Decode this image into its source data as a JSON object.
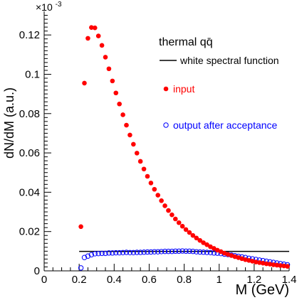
{
  "chart_data": {
    "type": "scatter",
    "title": "",
    "xlabel": "M (GeV)",
    "ylabel": "dN/dM (a.u.)",
    "y_multiplier_label": "×10",
    "y_multiplier_exp": "-3",
    "xlim": [
      0,
      1.4
    ],
    "ylim": [
      0,
      0.132
    ],
    "x_ticks": [
      0,
      0.2,
      0.4,
      0.6,
      0.8,
      1,
      1.2,
      1.4
    ],
    "x_tick_labels": [
      "0",
      "0.2",
      "0.4",
      "0.6",
      "0.8",
      "1",
      "1.2",
      "1.4"
    ],
    "y_ticks": [
      0,
      0.02,
      0.04,
      0.06,
      0.08,
      0.1,
      0.12
    ],
    "y_tick_labels": [
      "0",
      "0.02",
      "0.04",
      "0.06",
      "0.08",
      "0.1",
      "0.12"
    ],
    "grid": false,
    "legend_position": "top-right",
    "legend_header": "thermal qq̄",
    "series": [
      {
        "name": "white spectral function",
        "style": "line",
        "color": "#000000",
        "x": [
          0.2,
          1.4
        ],
        "y": [
          0.0099,
          0.0099
        ]
      },
      {
        "name": "input",
        "style": "filled-circle",
        "color": "#ff0000",
        "x": [
          0.21,
          0.23,
          0.25,
          0.27,
          0.29,
          0.31,
          0.33,
          0.35,
          0.37,
          0.39,
          0.41,
          0.43,
          0.45,
          0.47,
          0.49,
          0.51,
          0.53,
          0.55,
          0.57,
          0.59,
          0.61,
          0.63,
          0.65,
          0.67,
          0.69,
          0.71,
          0.73,
          0.75,
          0.77,
          0.79,
          0.81,
          0.83,
          0.85,
          0.87,
          0.89,
          0.91,
          0.93,
          0.95,
          0.97,
          0.99,
          1.01,
          1.03,
          1.05,
          1.07,
          1.09,
          1.11,
          1.13,
          1.15,
          1.17,
          1.19,
          1.21,
          1.23,
          1.25,
          1.27,
          1.29,
          1.31,
          1.33,
          1.35,
          1.37,
          1.39
        ],
        "y": [
          0.0225,
          0.0955,
          0.1183,
          0.1238,
          0.1236,
          0.1195,
          0.1147,
          0.1087,
          0.1028,
          0.0966,
          0.0905,
          0.0849,
          0.0794,
          0.0741,
          0.0691,
          0.0644,
          0.0599,
          0.0557,
          0.0518,
          0.0481,
          0.0447,
          0.0415,
          0.0385,
          0.0357,
          0.0331,
          0.0307,
          0.0285,
          0.0264,
          0.0245,
          0.0227,
          0.021,
          0.0195,
          0.018,
          0.0167,
          0.0155,
          0.0143,
          0.0133,
          0.0123,
          0.0114,
          0.0105,
          0.0098,
          0.009,
          0.0084,
          0.0078,
          0.0072,
          0.0067,
          0.0062,
          0.0057,
          0.0053,
          0.0049,
          0.0045,
          0.0042,
          0.0039,
          0.0036,
          0.0034,
          0.0031,
          0.0029,
          0.0027,
          0.0025,
          0.0023
        ]
      },
      {
        "name": "output after acceptance",
        "style": "open-circle",
        "color": "#0000ff",
        "x": [
          0.21,
          0.23,
          0.25,
          0.27,
          0.29,
          0.31,
          0.33,
          0.35,
          0.37,
          0.39,
          0.41,
          0.43,
          0.45,
          0.47,
          0.49,
          0.51,
          0.53,
          0.55,
          0.57,
          0.59,
          0.61,
          0.63,
          0.65,
          0.67,
          0.69,
          0.71,
          0.73,
          0.75,
          0.77,
          0.79,
          0.81,
          0.83,
          0.85,
          0.87,
          0.89,
          0.91,
          0.93,
          0.95,
          0.97,
          0.99,
          1.01,
          1.03,
          1.05,
          1.07,
          1.09,
          1.11,
          1.13,
          1.15,
          1.17,
          1.19,
          1.21,
          1.23,
          1.25,
          1.27,
          1.29,
          1.31,
          1.33,
          1.35,
          1.37,
          1.39
        ],
        "y": [
          0.0015,
          0.0068,
          0.0075,
          0.0082,
          0.0087,
          0.0088,
          0.0089,
          0.0089,
          0.0091,
          0.0091,
          0.0092,
          0.0092,
          0.0093,
          0.0094,
          0.0093,
          0.0093,
          0.0094,
          0.0094,
          0.0095,
          0.0096,
          0.0096,
          0.0097,
          0.0097,
          0.0098,
          0.0099,
          0.0099,
          0.0099,
          0.01,
          0.01,
          0.0101,
          0.01,
          0.01,
          0.0099,
          0.0097,
          0.0096,
          0.0095,
          0.0094,
          0.0093,
          0.0091,
          0.009,
          0.0088,
          0.0085,
          0.0083,
          0.008,
          0.0077,
          0.0074,
          0.0071,
          0.0068,
          0.0064,
          0.0061,
          0.0058,
          0.0055,
          0.0052,
          0.0049,
          0.0046,
          0.0043,
          0.004,
          0.0037,
          0.0034,
          0.0031
        ]
      }
    ],
    "colors": {
      "input": "#ff0000",
      "output": "#0000ff",
      "line": "#000000"
    }
  }
}
